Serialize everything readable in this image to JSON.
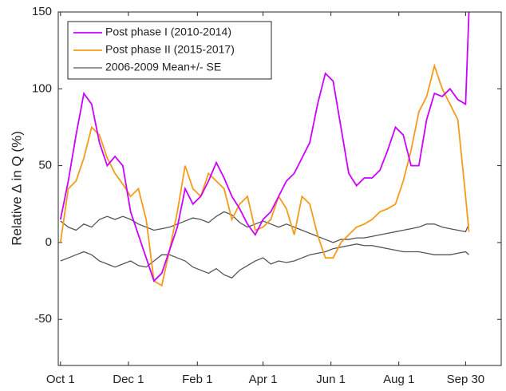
{
  "chart_data": {
    "type": "line",
    "ylabel": "Relative ∆ in Q (%)",
    "x": [
      0,
      7,
      14,
      21,
      28,
      35,
      42,
      49,
      56,
      63,
      70,
      77,
      84,
      91,
      98,
      105,
      112,
      119,
      126,
      133,
      140,
      147,
      154,
      161,
      168,
      175,
      182,
      189,
      196,
      203,
      210,
      217,
      224,
      231,
      238,
      245,
      252,
      259,
      266,
      273,
      280,
      287,
      294,
      301,
      308,
      315,
      322,
      329,
      336,
      343,
      350,
      357,
      364,
      367
    ],
    "series": [
      {
        "name": "Post phase I (2010-2014)",
        "color": "#cc00ff",
        "values": [
          15,
          40,
          70,
          97,
          90,
          65,
          50,
          56,
          50,
          20,
          5,
          -10,
          -25,
          -20,
          -5,
          10,
          35,
          25,
          30,
          40,
          52,
          42,
          30,
          22,
          12,
          5,
          15,
          20,
          30,
          40,
          45,
          55,
          65,
          90,
          110,
          105,
          75,
          45,
          37,
          42,
          42,
          47,
          60,
          75,
          70,
          50,
          50,
          80,
          97,
          95,
          100,
          93,
          90,
          150
        ]
      },
      {
        "name": "Post phase II (2015-2017)",
        "color": "#f59b1a",
        "values": [
          0,
          35,
          40,
          55,
          75,
          70,
          55,
          45,
          38,
          30,
          35,
          15,
          -25,
          -28,
          -5,
          20,
          50,
          35,
          30,
          45,
          40,
          35,
          15,
          25,
          30,
          8,
          10,
          15,
          30,
          22,
          5,
          30,
          25,
          5,
          -10,
          -10,
          0,
          5,
          10,
          12,
          15,
          20,
          22,
          25,
          40,
          60,
          85,
          95,
          115,
          100,
          90,
          80,
          30,
          7
        ]
      },
      {
        "name": "2006-2009 Mean+/- SE",
        "color": "#555555",
        "values": [
          14,
          10,
          8,
          12,
          10,
          15,
          17,
          15,
          17,
          15,
          12,
          10,
          8,
          9,
          10,
          12,
          14,
          16,
          15,
          13,
          17,
          20,
          18,
          13,
          10,
          12,
          14,
          12,
          10,
          12,
          10,
          8,
          6,
          4,
          2,
          0,
          2,
          2,
          3,
          3,
          4,
          5,
          6,
          7,
          8,
          9,
          10,
          12,
          12,
          10,
          9,
          8,
          7,
          12
        ],
        "values_lower": [
          -12,
          -10,
          -8,
          -6,
          -8,
          -12,
          -14,
          -16,
          -14,
          -12,
          -15,
          -16,
          -12,
          -8,
          -8,
          -10,
          -12,
          -16,
          -18,
          -20,
          -17,
          -21,
          -23,
          -18,
          -15,
          -12,
          -10,
          -14,
          -12,
          -13,
          -12,
          -10,
          -8,
          -7,
          -6,
          -4,
          -3,
          -2,
          -1,
          -2,
          -2,
          -3,
          -4,
          -5,
          -6,
          -6,
          -6,
          -7,
          -8,
          -8,
          -8,
          -7,
          -6,
          -8
        ]
      }
    ],
    "xlim": [
      -2,
      396
    ],
    "xticks": [
      {
        "value": 0,
        "label": "Oct 1"
      },
      {
        "value": 61,
        "label": "Dec 1"
      },
      {
        "value": 123,
        "label": "Feb 1"
      },
      {
        "value": 182,
        "label": "Apr 1"
      },
      {
        "value": 243,
        "label": "Jun 1"
      },
      {
        "value": 304,
        "label": "Aug 1"
      },
      {
        "value": 364,
        "label": "Sep 30"
      }
    ],
    "ylim": [
      -80,
      150
    ],
    "yticks": [
      -50,
      0,
      50,
      100,
      150
    ],
    "legend": "upper-left"
  }
}
